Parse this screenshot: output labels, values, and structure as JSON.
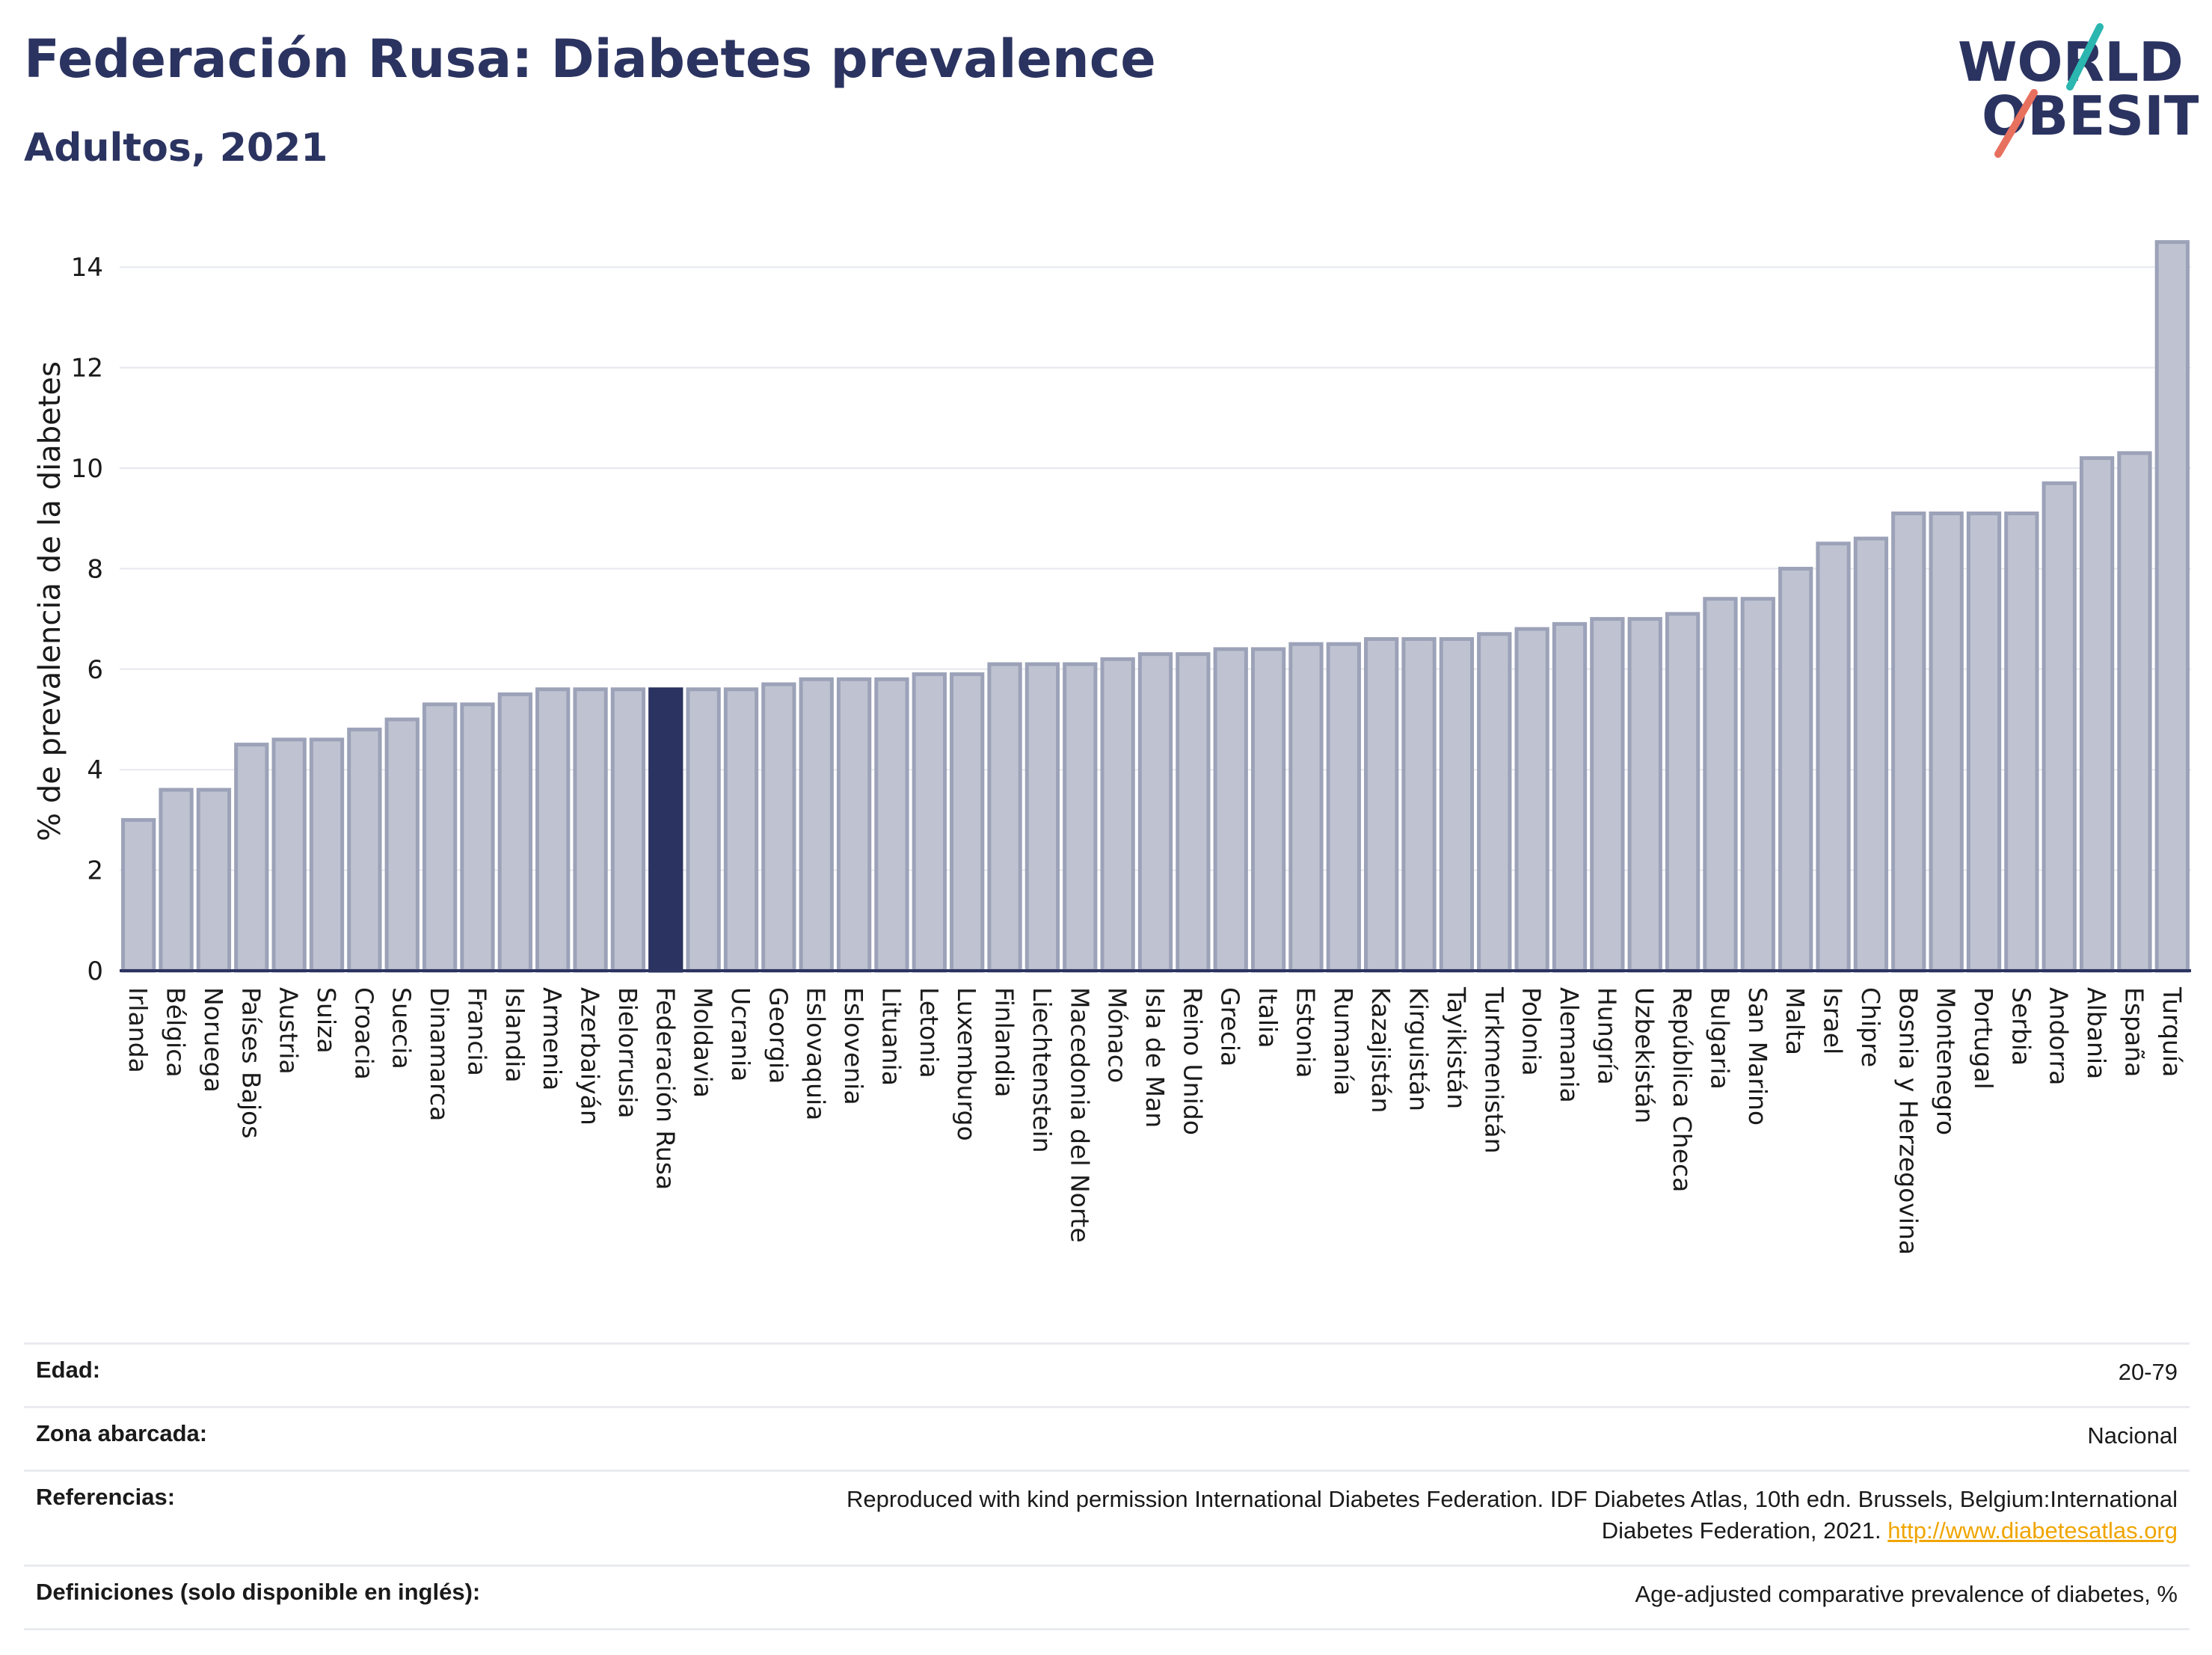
{
  "header": {
    "title": "Federación Rusa: Diabetes prevalence",
    "subtitle": "Adultos, 2021"
  },
  "logo": {
    "line1": "WORLD",
    "line2": "OBESITY",
    "colors": {
      "text": "#2b3360",
      "teal": "#2bb6b0",
      "coral": "#e8705f"
    }
  },
  "colors": {
    "bar": "#bfc3d1",
    "bar_stroke": "#9ca2b8",
    "highlight": "#2b3360",
    "grid": "#e6e8ee",
    "axis": "#2b3360"
  },
  "chart_data": {
    "type": "bar",
    "title": "Federación Rusa: Diabetes prevalence",
    "subtitle": "Adultos, 2021",
    "xlabel": "",
    "ylabel": "% de prevalencia de la diabetes",
    "ylim": [
      0,
      15
    ],
    "yticks": [
      0,
      2,
      4,
      6,
      8,
      10,
      12,
      14
    ],
    "grid": true,
    "highlight": "Federación Rusa",
    "categories": [
      "Irlanda",
      "Bélgica",
      "Noruega",
      "Países Bajos",
      "Austria",
      "Suiza",
      "Croacia",
      "Suecia",
      "Dinamarca",
      "Francia",
      "Islandia",
      "Armenia",
      "Azerbaiyán",
      "Bielorrusia",
      "Federación Rusa",
      "Moldavia",
      "Ucrania",
      "Georgia",
      "Eslovaquia",
      "Eslovenia",
      "Lituania",
      "Letonia",
      "Luxemburgo",
      "Finlandia",
      "Liechtenstein",
      "Macedonia del Norte",
      "Mónaco",
      "Isla de Man",
      "Reino Unido",
      "Grecia",
      "Italia",
      "Estonia",
      "Rumanía",
      "Kazajistán",
      "Kirguistán",
      "Tayikistán",
      "Turkmenistán",
      "Polonia",
      "Alemania",
      "Hungría",
      "Uzbekistán",
      "República Checa",
      "Bulgaria",
      "San Marino",
      "Malta",
      "Israel",
      "Chipre",
      "Bosnia y Herzegovina",
      "Montenegro",
      "Portugal",
      "Serbia",
      "Andorra",
      "Albania",
      "España",
      "Turquía"
    ],
    "values": [
      3.0,
      3.6,
      3.6,
      4.5,
      4.6,
      4.6,
      4.8,
      5.0,
      5.3,
      5.3,
      5.5,
      5.6,
      5.6,
      5.6,
      5.6,
      5.6,
      5.6,
      5.7,
      5.8,
      5.8,
      5.8,
      5.9,
      5.9,
      6.1,
      6.1,
      6.1,
      6.2,
      6.3,
      6.3,
      6.4,
      6.4,
      6.5,
      6.5,
      6.6,
      6.6,
      6.6,
      6.7,
      6.8,
      6.9,
      7.0,
      7.0,
      7.1,
      7.4,
      7.4,
      8.0,
      8.5,
      8.6,
      9.1,
      9.1,
      9.1,
      9.1,
      9.7,
      10.2,
      10.3,
      14.5
    ]
  },
  "meta": {
    "age_label": "Edad:",
    "age_value": "20-79",
    "area_label": "Zona abarcada:",
    "area_value": "Nacional",
    "refs_label": "Referencias:",
    "refs_text_1": "Reproduced with kind permission International Diabetes Federation.  IDF Diabetes Atlas, 10th edn. Brussels, Belgium:International",
    "refs_text_2": "Diabetes Federation, 2021. ",
    "refs_link": "http://www.diabetesatlas.org",
    "defs_label": "Definiciones (solo disponible en inglés):",
    "defs_value": "Age-adjusted comparative prevalence of diabetes, %"
  }
}
